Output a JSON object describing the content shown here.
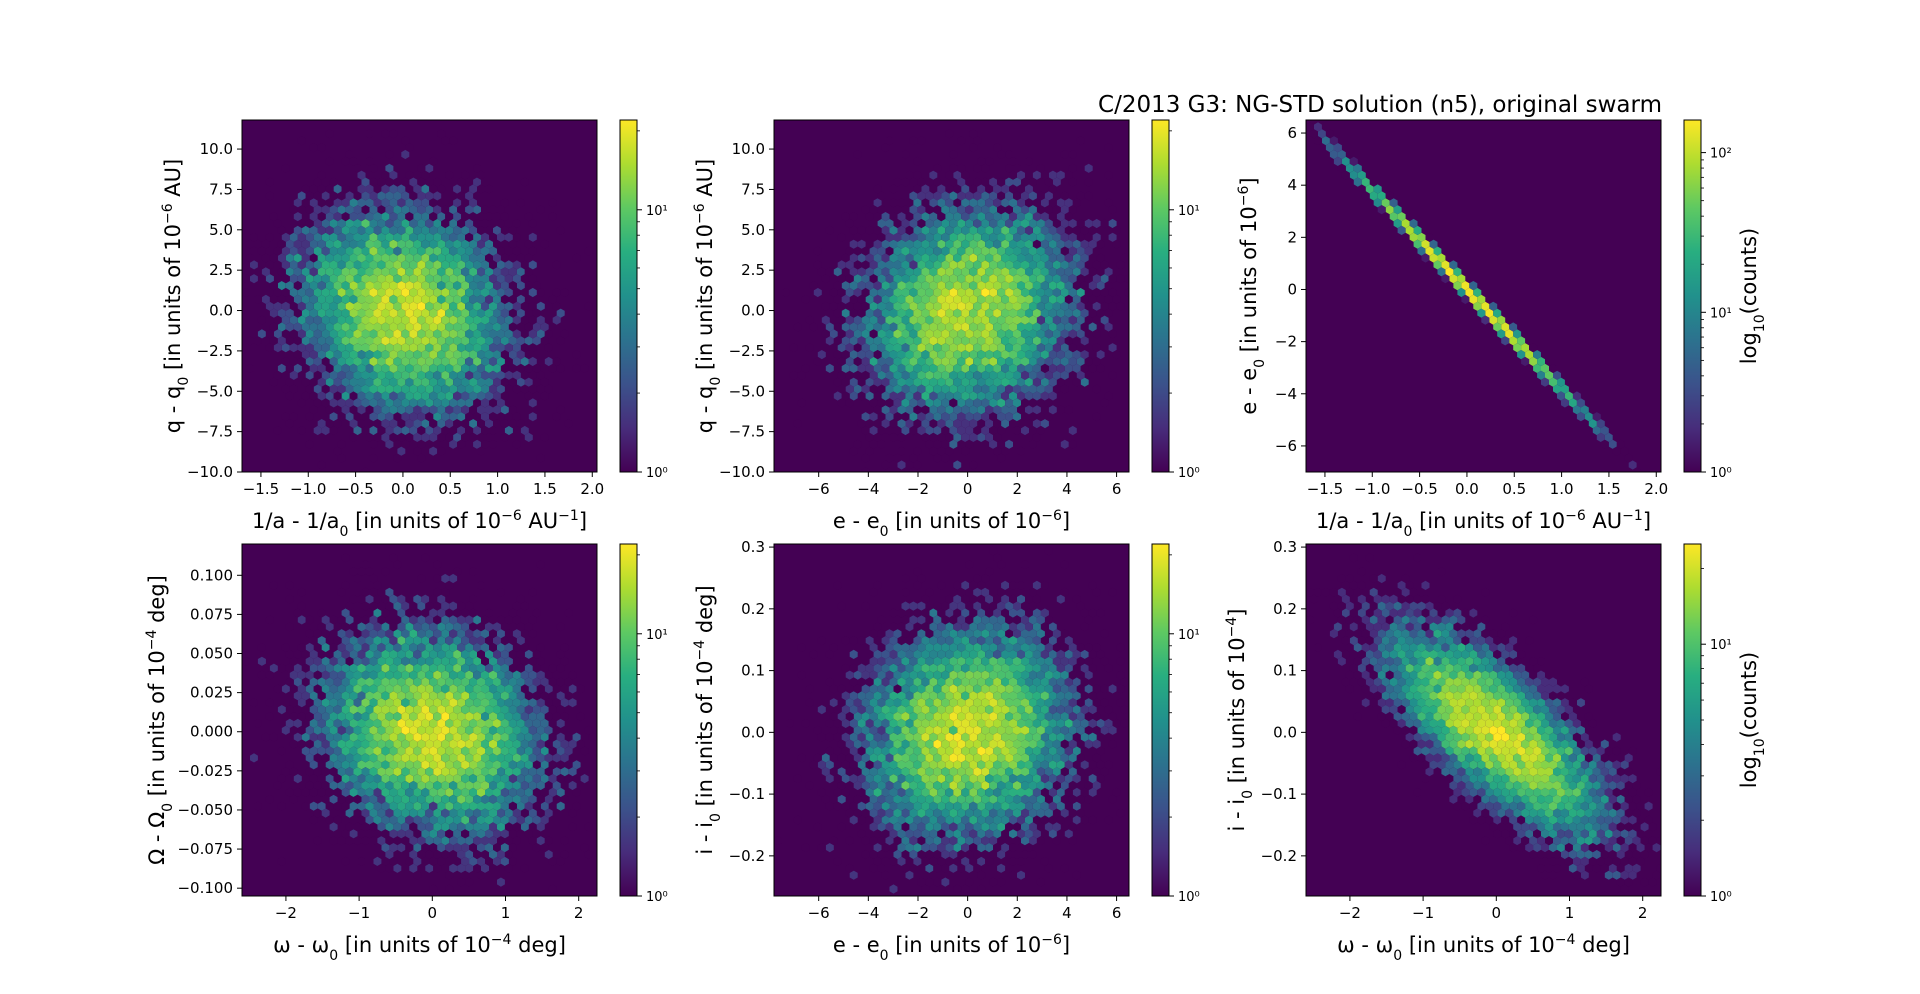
{
  "figure_title": "C/2013 G3: NG-STD solution (n5), original swarm",
  "colormap": [
    "#440154",
    "#472d7b",
    "#3b528b",
    "#2c728e",
    "#21918c",
    "#28ae80",
    "#5ec962",
    "#addc30",
    "#fde725"
  ],
  "background_color": "#440154",
  "chart_data": [
    {
      "type": "heatmap",
      "subtype": "hexbin",
      "xlabel": "1/a - 1/a0 [in units of 10-6 AU-1]",
      "ylabel": "q - q0 [in units of 10-6 AU]",
      "xlim": [
        -1.7,
        2.05
      ],
      "ylim": [
        -10.0,
        11.8
      ],
      "xticks": [
        -1.5,
        -1.0,
        -0.5,
        0.0,
        0.5,
        1.0,
        1.5,
        2.0
      ],
      "xtick_labels": [
        "−1.5",
        "−1.0",
        "−0.5",
        "0.0",
        "0.5",
        "1.0",
        "1.5",
        "2.0"
      ],
      "yticks": [
        -10.0,
        -7.5,
        -5.0,
        -2.5,
        0.0,
        2.5,
        5.0,
        7.5,
        10.0
      ],
      "ytick_labels": [
        "−10.0",
        "−7.5",
        "−5.0",
        "−2.5",
        "0.0",
        "2.5",
        "5.0",
        "7.5",
        "10.0"
      ],
      "distribution": {
        "center": [
          0.0,
          0.0
        ],
        "sd": [
          0.55,
          3.2
        ],
        "correlation": -0.15
      },
      "colorbar": {
        "scale": "log",
        "range": [
          1,
          22
        ],
        "tick_labels": [
          "10⁰",
          "10¹"
        ],
        "label": ""
      }
    },
    {
      "type": "heatmap",
      "subtype": "hexbin",
      "xlabel": "e - e0 [in units of 10-6]",
      "ylabel": "q - q0 [in units of 10-6 AU]",
      "xlim": [
        -7.8,
        6.5
      ],
      "ylim": [
        -10.0,
        11.8
      ],
      "xticks": [
        -6,
        -4,
        -2,
        0,
        2,
        4,
        6
      ],
      "xtick_labels": [
        "−6",
        "−4",
        "−2",
        "0",
        "2",
        "4",
        "6"
      ],
      "yticks": [
        -10.0,
        -7.5,
        -5.0,
        -2.5,
        0.0,
        2.5,
        5.0,
        7.5,
        10.0
      ],
      "ytick_labels": [
        "−10.0",
        "−7.5",
        "−5.0",
        "−2.5",
        "0.0",
        "2.5",
        "5.0",
        "7.5",
        "10.0"
      ],
      "distribution": {
        "center": [
          0.0,
          0.0
        ],
        "sd": [
          2.1,
          3.2
        ],
        "correlation": 0.12
      },
      "colorbar": {
        "scale": "log",
        "range": [
          1,
          22
        ],
        "tick_labels": [
          "10⁰",
          "10¹"
        ],
        "label": ""
      }
    },
    {
      "type": "heatmap",
      "subtype": "hexbin",
      "xlabel": "1/a - 1/a0 [in units of 10-6 AU-1]",
      "ylabel": "e - e0 [in units of 10-6]",
      "xlim": [
        -1.7,
        2.05
      ],
      "ylim": [
        -7.0,
        6.5
      ],
      "xticks": [
        -1.5,
        -1.0,
        -0.5,
        0.0,
        0.5,
        1.0,
        1.5,
        2.0
      ],
      "xtick_labels": [
        "−1.5",
        "−1.0",
        "−0.5",
        "0.0",
        "0.5",
        "1.0",
        "1.5",
        "2.0"
      ],
      "yticks": [
        -6,
        -4,
        -2,
        0,
        2,
        4,
        6
      ],
      "ytick_labels": [
        "−6",
        "−4",
        "−2",
        "0",
        "2",
        "4",
        "6"
      ],
      "distribution": {
        "center": [
          0.0,
          0.0
        ],
        "sd": [
          0.55,
          2.1
        ],
        "correlation": -0.999
      },
      "colorbar": {
        "scale": "log",
        "range": [
          1,
          160
        ],
        "tick_labels": [
          "10⁰",
          "10¹",
          "10²"
        ],
        "label": "log10(counts)"
      }
    },
    {
      "type": "heatmap",
      "subtype": "hexbin",
      "xlabel": "ω - ω0 [in units of 10-4 deg]",
      "ylabel": "Ω - Ω0 [in units of 10-4 deg]",
      "xlim": [
        -2.6,
        2.25
      ],
      "ylim": [
        -0.105,
        0.12
      ],
      "xticks": [
        -2,
        -1,
        0,
        1,
        2
      ],
      "xtick_labels": [
        "−2",
        "−1",
        "0",
        "1",
        "2"
      ],
      "yticks": [
        -0.1,
        -0.075,
        -0.05,
        -0.025,
        0.0,
        0.025,
        0.05,
        0.075,
        0.1
      ],
      "ytick_labels": [
        "−0.100",
        "−0.075",
        "−0.050",
        "−0.025",
        "0.000",
        "0.025",
        "0.050",
        "0.075",
        "0.100"
      ],
      "distribution": {
        "center": [
          0.0,
          0.0
        ],
        "sd": [
          0.75,
          0.033
        ],
        "correlation": -0.15
      },
      "colorbar": {
        "scale": "log",
        "range": [
          1,
          22
        ],
        "tick_labels": [
          "10⁰",
          "10¹"
        ],
        "label": ""
      }
    },
    {
      "type": "heatmap",
      "subtype": "hexbin",
      "xlabel": "e - e0 [in units of 10-6]",
      "ylabel": "i - i0 [in units of 10-4 deg]",
      "xlim": [
        -7.8,
        6.5
      ],
      "ylim": [
        -0.265,
        0.305
      ],
      "xticks": [
        -6,
        -4,
        -2,
        0,
        2,
        4,
        6
      ],
      "xtick_labels": [
        "−6",
        "−4",
        "−2",
        "0",
        "2",
        "4",
        "6"
      ],
      "yticks": [
        -0.2,
        -0.1,
        0.0,
        0.1,
        0.2,
        0.3
      ],
      "ytick_labels": [
        "−0.2",
        "−0.1",
        "0.0",
        "0.1",
        "0.2",
        "0.3"
      ],
      "distribution": {
        "center": [
          0.0,
          0.0
        ],
        "sd": [
          2.1,
          0.085
        ],
        "correlation": 0.1
      },
      "colorbar": {
        "scale": "log",
        "range": [
          1,
          22
        ],
        "tick_labels": [
          "10⁰",
          "10¹"
        ],
        "label": ""
      }
    },
    {
      "type": "heatmap",
      "subtype": "hexbin",
      "xlabel": "ω - ω0 [in units of 10-4 deg]",
      "ylabel": "i - i0 [in units of 10-4]",
      "xlim": [
        -2.6,
        2.25
      ],
      "ylim": [
        -0.265,
        0.305
      ],
      "xticks": [
        -2,
        -1,
        0,
        1,
        2
      ],
      "xtick_labels": [
        "−2",
        "−1",
        "0",
        "1",
        "2"
      ],
      "yticks": [
        -0.2,
        -0.1,
        0.0,
        0.1,
        0.2,
        0.3
      ],
      "ytick_labels": [
        "−0.2",
        "−0.1",
        "0.0",
        "0.1",
        "0.2",
        "0.3"
      ],
      "distribution": {
        "center": [
          0.0,
          0.0
        ],
        "sd": [
          0.75,
          0.085
        ],
        "correlation": -0.75
      },
      "colorbar": {
        "scale": "log",
        "range": [
          1,
          25
        ],
        "tick_labels": [
          "10⁰",
          "10¹"
        ],
        "label": "log10(counts)"
      }
    }
  ]
}
